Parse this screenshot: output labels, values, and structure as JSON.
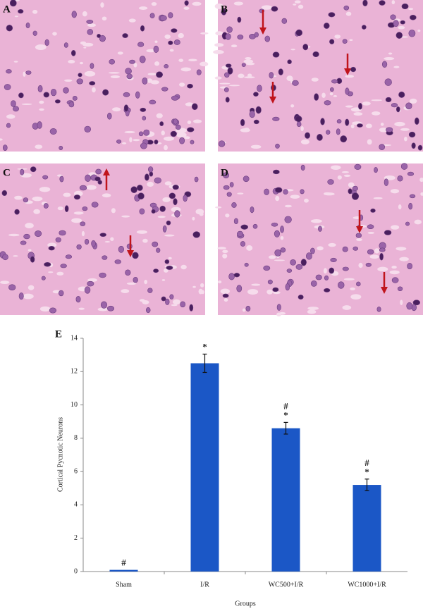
{
  "panels": [
    {
      "label": "A"
    },
    {
      "label": "B"
    },
    {
      "label": "C"
    },
    {
      "label": "D"
    }
  ],
  "chart_data": {
    "type": "bar",
    "panel_label": "E",
    "y_label": "Cortical Pycnotic Neurons",
    "x_label": "Groups",
    "categories": [
      "Sham",
      "I/R",
      "WC500+I/R",
      "WC1000+I/R"
    ],
    "values": [
      0.1,
      12.5,
      8.6,
      5.2
    ],
    "errors": [
      0,
      0.55,
      0.35,
      0.35
    ],
    "annotations": [
      [
        "#"
      ],
      [
        "*"
      ],
      [
        "#",
        "*"
      ],
      [
        "#",
        "*"
      ]
    ],
    "color": "#1b57c6",
    "ylim": [
      0,
      14
    ],
    "yticks": [
      0,
      2,
      4,
      6,
      8,
      10,
      12,
      14
    ],
    "grid": false
  }
}
